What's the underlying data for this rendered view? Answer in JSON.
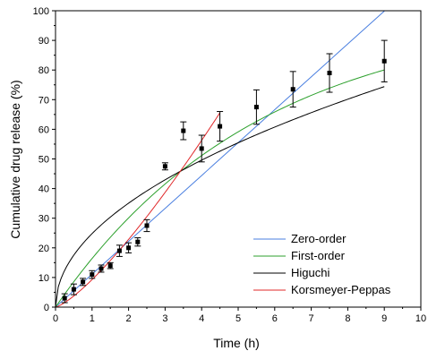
{
  "chart_data": {
    "type": "scatter",
    "title": "",
    "xlabel": "Time (h)",
    "ylabel": "Cumulative drug release (%)",
    "xlim": [
      0,
      10
    ],
    "ylim": [
      0,
      100
    ],
    "xticks": [
      "0",
      "1",
      "2",
      "3",
      "4",
      "5",
      "6",
      "7",
      "8",
      "9",
      "10"
    ],
    "yticks": [
      "0",
      "10",
      "20",
      "30",
      "40",
      "50",
      "60",
      "70",
      "80",
      "90",
      "100"
    ],
    "grid": false,
    "legend_position": "bottom-right",
    "observed": {
      "x": [
        0.25,
        0.5,
        0.75,
        1,
        1.25,
        1.5,
        1.75,
        2,
        2.25,
        2.5,
        3,
        3.5,
        4,
        4.5,
        5.5,
        6.5,
        7.5,
        9
      ],
      "y": [
        3,
        6,
        8.5,
        11,
        13,
        14,
        19,
        20,
        22,
        27.5,
        47.5,
        59.5,
        53.5,
        61,
        67.5,
        73.5,
        79,
        83
      ],
      "error": [
        1.5,
        1.8,
        1.2,
        1.3,
        1.2,
        1.0,
        1.9,
        1.7,
        1.4,
        2.0,
        1.2,
        3.0,
        4.5,
        5.0,
        5.8,
        6.0,
        6.5,
        7.0
      ]
    },
    "series": [
      {
        "name": "Zero-order",
        "model": "zero",
        "k": 11.1,
        "color": "#4a7fe0",
        "x": [
          0,
          9
        ]
      },
      {
        "name": "First-order",
        "model": "first",
        "k": 0.179,
        "color": "#2ca02c",
        "x": [
          0,
          9
        ]
      },
      {
        "name": "Higuchi",
        "model": "higuchi",
        "k": 24.8,
        "color": "#000000",
        "x": [
          0,
          9
        ]
      },
      {
        "name": "Korsmeyer-Peppas",
        "model": "power",
        "k": 9.28,
        "n": 1.3,
        "color": "#e0282a",
        "x": [
          0,
          4.5
        ]
      }
    ]
  }
}
